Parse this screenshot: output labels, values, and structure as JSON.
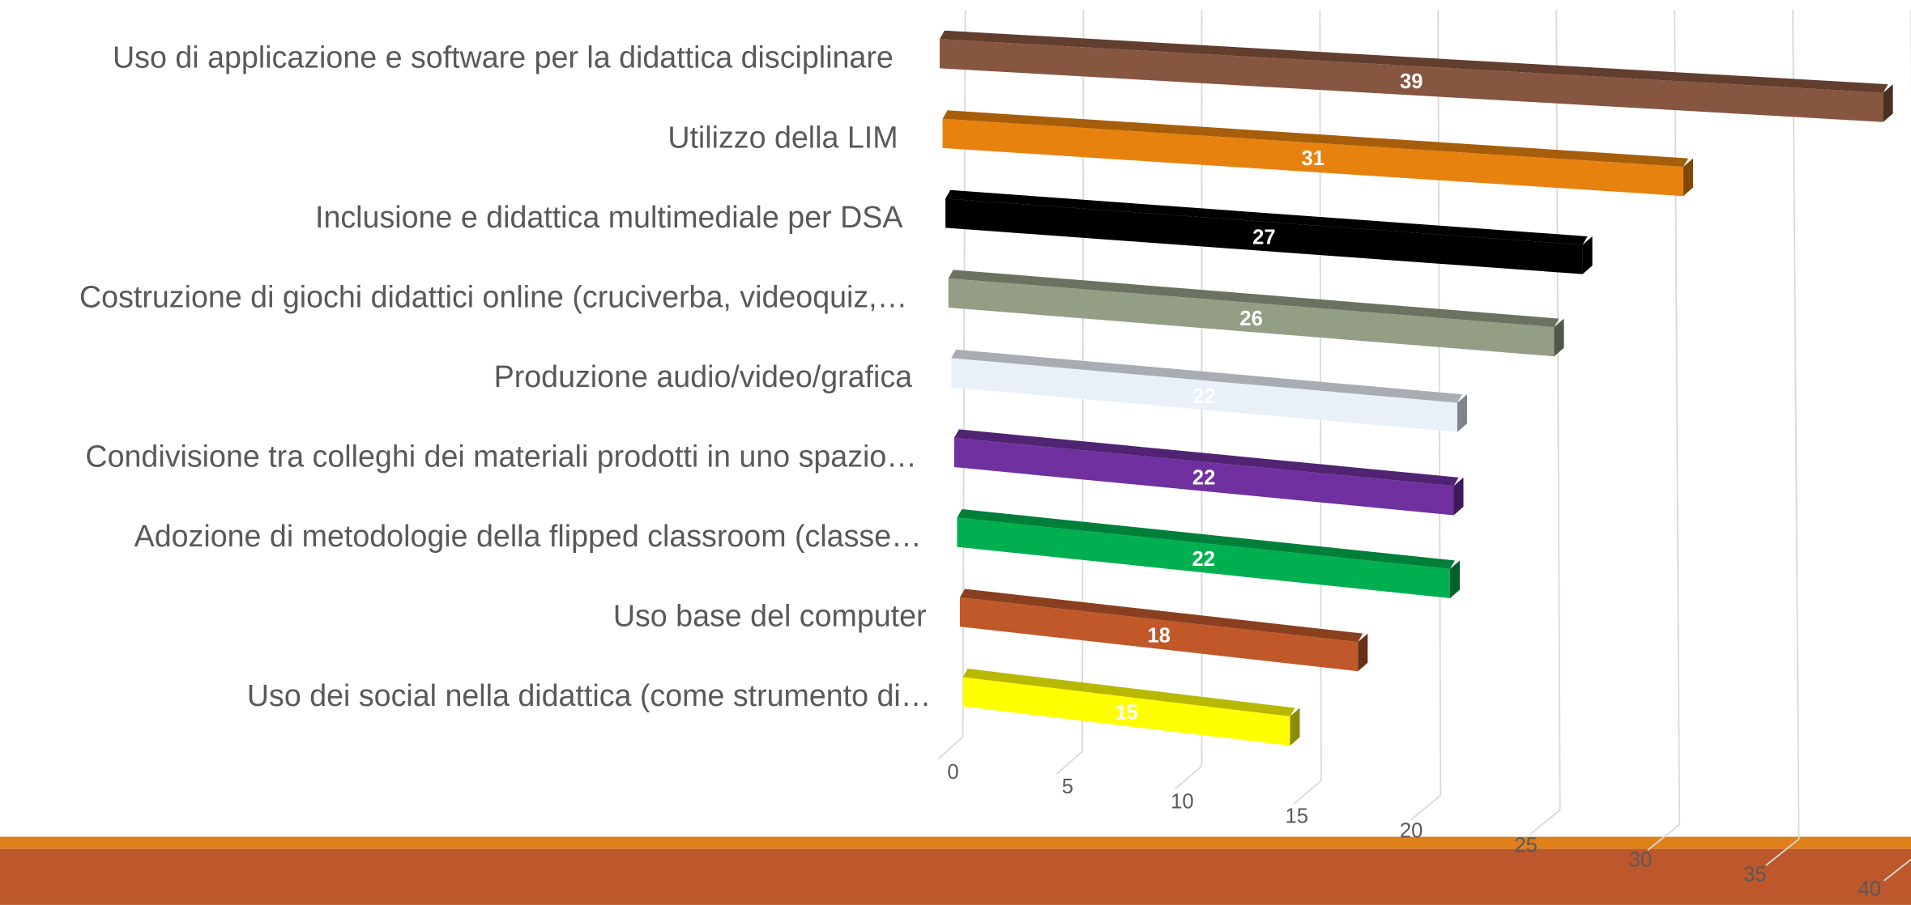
{
  "chart_data": {
    "type": "bar3d",
    "categories": [
      "Uso di applicazione e software per la didattica disciplinare",
      "Utilizzo della LIM",
      "Inclusione e didattica multimediale per DSA",
      "Costruzione di giochi didattici online (cruciverba, videoquiz,…",
      "Produzione audio/video/grafica",
      "Condivisione tra colleghi dei materiali prodotti in uno spazio…",
      "Adozione di metodologie della flipped classroom (classe…",
      "Uso base del computer",
      "Uso dei social nella didattica (come strumento di…"
    ],
    "values": [
      39,
      31,
      27,
      26,
      22,
      22,
      22,
      18,
      15
    ],
    "colors": [
      "#875640",
      "#e8820f",
      "#000000",
      "#949e85",
      "#e9f0f8",
      "#7030a0",
      "#00b050",
      "#c0582a",
      "#ffff00"
    ],
    "xlim": [
      0,
      40
    ],
    "xticks": [
      0,
      5,
      10,
      15,
      20,
      25,
      30,
      35,
      40
    ],
    "grid": true
  }
}
